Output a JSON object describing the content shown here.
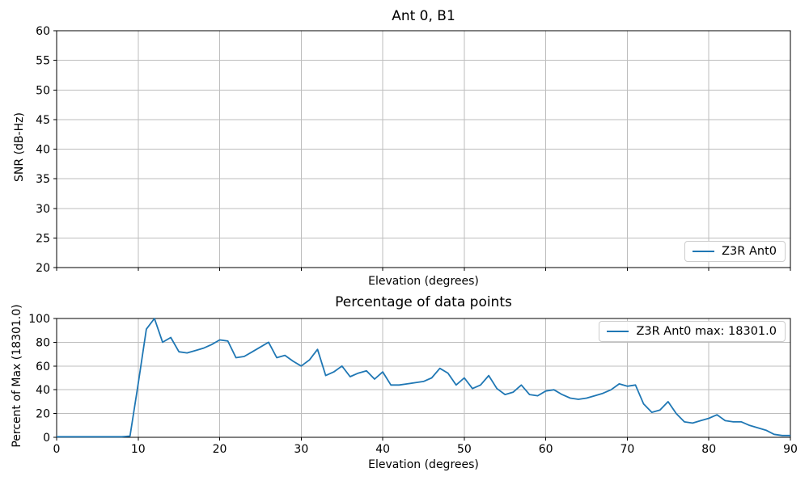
{
  "colors": {
    "accent": "#1f77b4",
    "grid": "#bdbdbd",
    "spine": "#000000",
    "legend_border": "#cccccc",
    "background": "#ffffff"
  },
  "chart_data": [
    {
      "id": "snr",
      "type": "line",
      "title": "Ant 0, B1",
      "xlabel": "Elevation (degrees)",
      "ylabel": "SNR (dB-Hz)",
      "xlim": [
        0,
        90
      ],
      "ylim": [
        20,
        60
      ],
      "xticks": [
        0,
        10,
        20,
        30,
        40,
        50,
        60,
        70,
        80,
        90
      ],
      "yticks": [
        20,
        25,
        30,
        35,
        40,
        45,
        50,
        55,
        60
      ],
      "xtick_labels_visible": false,
      "grid": true,
      "legend": {
        "label": "Z3R Ant0",
        "position": "lower right"
      },
      "series": [
        {
          "name": "Z3R Ant0",
          "color": "#1f77b4",
          "x": [],
          "y": []
        }
      ]
    },
    {
      "id": "percentage",
      "type": "line",
      "title": "Percentage of data points",
      "xlabel": "Elevation (degrees)",
      "ylabel": "Percent of Max (18301.0)",
      "max_value": 18301.0,
      "xlim": [
        0,
        90
      ],
      "ylim": [
        0,
        100
      ],
      "xticks": [
        0,
        10,
        20,
        30,
        40,
        50,
        60,
        70,
        80,
        90
      ],
      "yticks": [
        0,
        20,
        40,
        60,
        80,
        100
      ],
      "xtick_labels_visible": true,
      "grid": true,
      "legend": {
        "label": "Z3R Ant0 max: 18301.0",
        "position": "upper right"
      },
      "series": [
        {
          "name": "Z3R Ant0 max: 18301.0",
          "color": "#1f77b4",
          "x": [
            0,
            1,
            2,
            3,
            4,
            5,
            6,
            7,
            8,
            9,
            10,
            11,
            12,
            13,
            14,
            15,
            16,
            17,
            18,
            19,
            20,
            21,
            22,
            23,
            24,
            25,
            26,
            27,
            28,
            29,
            30,
            31,
            32,
            33,
            34,
            35,
            36,
            37,
            38,
            39,
            40,
            41,
            42,
            43,
            44,
            45,
            46,
            47,
            48,
            49,
            50,
            51,
            52,
            53,
            54,
            55,
            56,
            57,
            58,
            59,
            60,
            61,
            62,
            63,
            64,
            65,
            66,
            67,
            68,
            69,
            70,
            71,
            72,
            73,
            74,
            75,
            76,
            77,
            78,
            79,
            80,
            81,
            82,
            83,
            84,
            85,
            86,
            87,
            88,
            89,
            90
          ],
          "y": [
            0.5,
            0.5,
            0.5,
            0.5,
            0.5,
            0.5,
            0.5,
            0.5,
            0.5,
            1,
            45,
            91,
            100,
            80,
            84,
            72,
            71,
            73,
            75,
            78,
            82,
            81,
            67,
            68,
            72,
            76,
            80,
            67,
            69,
            64,
            60,
            65,
            74,
            52,
            55,
            60,
            51,
            54,
            56,
            49,
            55,
            44,
            44,
            45,
            46,
            47,
            50,
            58,
            54,
            44,
            50,
            41,
            44,
            52,
            41,
            36,
            38,
            44,
            36,
            35,
            39,
            40,
            36,
            33,
            32,
            33,
            35,
            37,
            40,
            45,
            43,
            44,
            28,
            21,
            23,
            30,
            20,
            13,
            12,
            14,
            16,
            19,
            14,
            13,
            13,
            10,
            8,
            6,
            2.5,
            1.5,
            1.5
          ]
        }
      ]
    }
  ]
}
